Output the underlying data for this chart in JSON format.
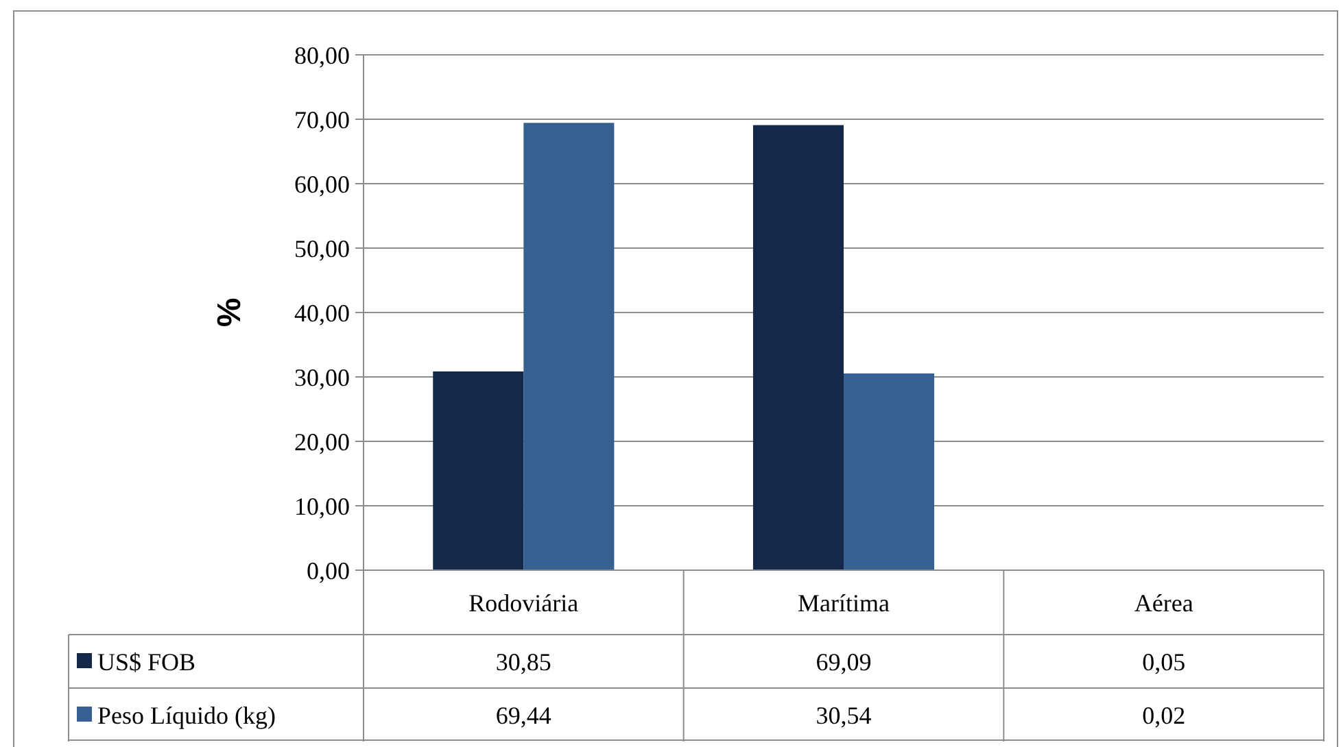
{
  "chart_data": {
    "type": "bar",
    "ylabel": "%",
    "categories": [
      "Rodoviária",
      "Marítima",
      "Aérea"
    ],
    "series": [
      {
        "name": "US$ FOB",
        "color": "#14284a",
        "values": [
          30.85,
          69.09,
          0.05
        ],
        "value_labels": [
          "30,85",
          "69,09",
          "0,05"
        ]
      },
      {
        "name": "Peso Líquido (kg)",
        "color": "#376092",
        "values": [
          69.44,
          30.54,
          0.02
        ],
        "value_labels": [
          "69,44",
          "30,54",
          "0,02"
        ]
      }
    ],
    "ylim": [
      0,
      80
    ],
    "yticks": [
      {
        "value": 0,
        "label": "0,00"
      },
      {
        "value": 10,
        "label": "10,00"
      },
      {
        "value": 20,
        "label": "20,00"
      },
      {
        "value": 30,
        "label": "30,00"
      },
      {
        "value": 40,
        "label": "40,00"
      },
      {
        "value": 50,
        "label": "50,00"
      },
      {
        "value": 60,
        "label": "60,00"
      },
      {
        "value": 70,
        "label": "70,00"
      },
      {
        "value": 80,
        "label": "80,00"
      }
    ],
    "grid": "y",
    "legend": "bottom"
  }
}
